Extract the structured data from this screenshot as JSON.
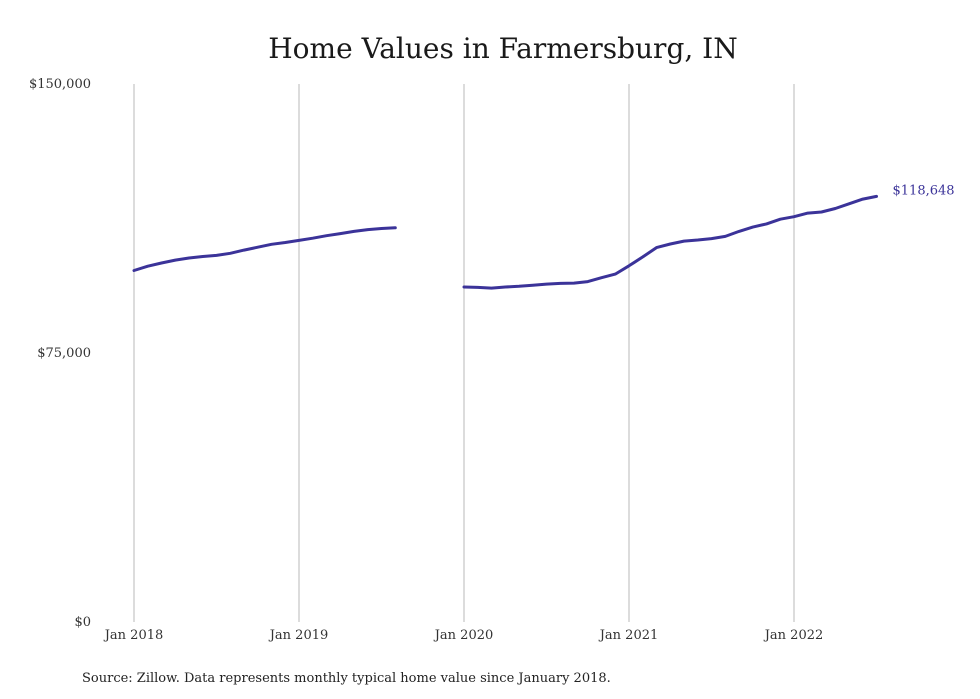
{
  "chart_data": {
    "type": "line",
    "title": "Home Values in Farmersburg, IN",
    "xlabel": "",
    "ylabel": "",
    "ylim": [
      0,
      150000
    ],
    "y_ticks": [
      "$150,000",
      "$75,000",
      "$0"
    ],
    "y_tick_values": [
      150000,
      75000,
      0
    ],
    "x_ticks": [
      "Jan 2018",
      "Jan 2019",
      "Jan 2020",
      "Jan 2021",
      "Jan 2022"
    ],
    "x_tick_values": [
      "2018-01",
      "2019-01",
      "2020-01",
      "2021-01",
      "2022-01"
    ],
    "x_range": [
      "2018-01",
      "2022-07"
    ],
    "grid": "vertical",
    "series": [
      {
        "color": "#3b3399",
        "points": [
          [
            "2018-01",
            98000
          ],
          [
            "2018-02",
            99200
          ],
          [
            "2018-03",
            100100
          ],
          [
            "2018-04",
            100900
          ],
          [
            "2018-05",
            101500
          ],
          [
            "2018-06",
            101900
          ],
          [
            "2018-07",
            102200
          ],
          [
            "2018-08",
            102800
          ],
          [
            "2018-09",
            103700
          ],
          [
            "2018-10",
            104500
          ],
          [
            "2018-11",
            105300
          ],
          [
            "2018-12",
            105800
          ],
          [
            "2019-01",
            106400
          ],
          [
            "2019-02",
            107000
          ],
          [
            "2019-03",
            107700
          ],
          [
            "2019-04",
            108300
          ],
          [
            "2019-05",
            108900
          ],
          [
            "2019-06",
            109400
          ],
          [
            "2019-07",
            109700
          ],
          [
            "2019-08",
            109900
          ],
          [
            "2019-09",
            null
          ],
          [
            "2019-10",
            null
          ],
          [
            "2019-11",
            null
          ],
          [
            "2019-12",
            null
          ],
          [
            "2020-01",
            93400
          ],
          [
            "2020-02",
            93300
          ],
          [
            "2020-03",
            93100
          ],
          [
            "2020-04",
            93400
          ],
          [
            "2020-05",
            93600
          ],
          [
            "2020-06",
            93900
          ],
          [
            "2020-07",
            94200
          ],
          [
            "2020-08",
            94400
          ],
          [
            "2020-09",
            94500
          ],
          [
            "2020-10",
            94900
          ],
          [
            "2020-11",
            96000
          ],
          [
            "2020-12",
            97000
          ],
          [
            "2021-01",
            99300
          ],
          [
            "2021-02",
            101800
          ],
          [
            "2021-03",
            104400
          ],
          [
            "2021-04",
            105400
          ],
          [
            "2021-05",
            106200
          ],
          [
            "2021-06",
            106500
          ],
          [
            "2021-07",
            106900
          ],
          [
            "2021-08",
            107500
          ],
          [
            "2021-09",
            108900
          ],
          [
            "2021-10",
            110100
          ],
          [
            "2021-11",
            111000
          ],
          [
            "2021-12",
            112300
          ],
          [
            "2022-01",
            113000
          ],
          [
            "2022-02",
            114000
          ],
          [
            "2022-03",
            114300
          ],
          [
            "2022-04",
            115300
          ],
          [
            "2022-05",
            116600
          ],
          [
            "2022-06",
            117900
          ],
          [
            "2022-07",
            118648
          ]
        ]
      }
    ],
    "end_label": "$118,648",
    "source": "Source: Zillow. Data represents monthly typical home value since January 2018."
  }
}
